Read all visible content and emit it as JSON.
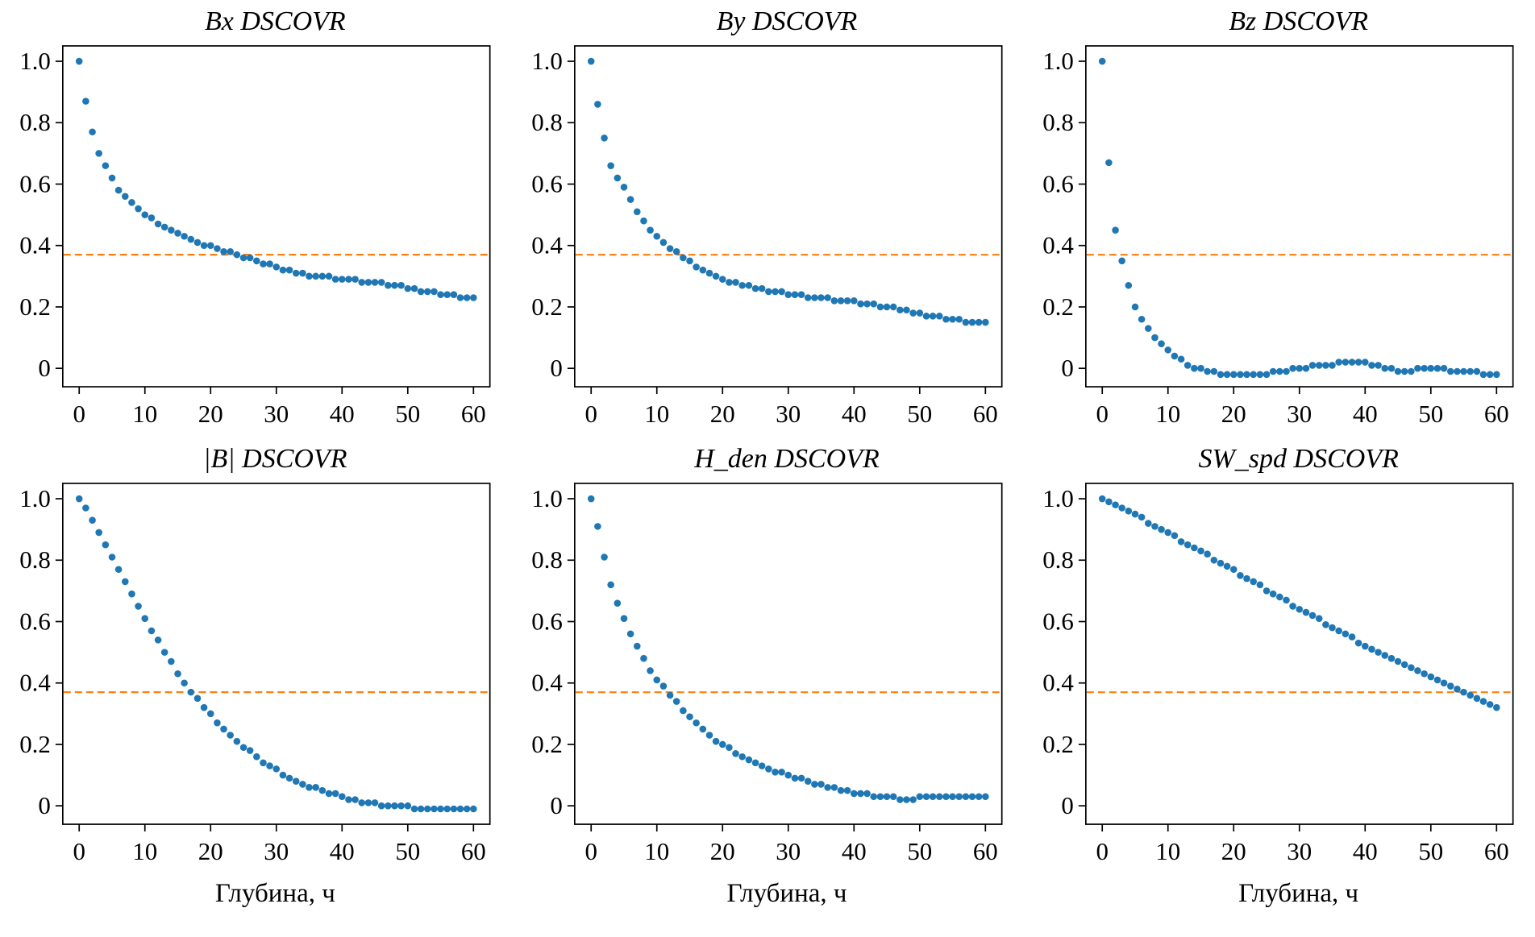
{
  "style": {
    "point_color": "#1f77b4",
    "threshold_color": "#ff7f0e",
    "axis_color": "#000000",
    "background": "#ffffff"
  },
  "axes": {
    "x": [
      0,
      1,
      2,
      3,
      4,
      5,
      6,
      7,
      8,
      9,
      10,
      11,
      12,
      13,
      14,
      15,
      16,
      17,
      18,
      19,
      20,
      21,
      22,
      23,
      24,
      25,
      26,
      27,
      28,
      29,
      30,
      31,
      32,
      33,
      34,
      35,
      36,
      37,
      38,
      39,
      40,
      41,
      42,
      43,
      44,
      45,
      46,
      47,
      48,
      49,
      50,
      51,
      52,
      53,
      54,
      55,
      56,
      57,
      58,
      59,
      60
    ],
    "xlim": [
      -2.5,
      62.5
    ],
    "ylim": [
      -0.06,
      1.05
    ],
    "xticks": [
      0,
      10,
      20,
      30,
      40,
      50,
      60
    ],
    "xtick_labels": [
      "0",
      "10",
      "20",
      "30",
      "40",
      "50",
      "60"
    ],
    "yticks": [
      0,
      0.2,
      0.4,
      0.6,
      0.8,
      1.0
    ],
    "ytick_labels": [
      "0",
      "0.2",
      "0.4",
      "0.6",
      "0.8",
      "1.0"
    ],
    "grid": false,
    "legend": "none"
  },
  "chart_data": [
    {
      "type": "scatter",
      "title": "Bx DSCOVR",
      "xlabel": "",
      "threshold": 0.37,
      "values": [
        1.0,
        0.87,
        0.77,
        0.7,
        0.66,
        0.62,
        0.58,
        0.56,
        0.54,
        0.52,
        0.5,
        0.49,
        0.47,
        0.46,
        0.45,
        0.44,
        0.43,
        0.42,
        0.41,
        0.4,
        0.4,
        0.39,
        0.38,
        0.38,
        0.37,
        0.36,
        0.36,
        0.35,
        0.34,
        0.34,
        0.33,
        0.32,
        0.32,
        0.31,
        0.31,
        0.3,
        0.3,
        0.3,
        0.3,
        0.29,
        0.29,
        0.29,
        0.29,
        0.28,
        0.28,
        0.28,
        0.28,
        0.27,
        0.27,
        0.27,
        0.26,
        0.26,
        0.25,
        0.25,
        0.25,
        0.24,
        0.24,
        0.24,
        0.23,
        0.23,
        0.23
      ]
    },
    {
      "type": "scatter",
      "title": "By DSCOVR",
      "xlabel": "",
      "threshold": 0.37,
      "values": [
        1.0,
        0.86,
        0.75,
        0.66,
        0.62,
        0.59,
        0.55,
        0.51,
        0.48,
        0.45,
        0.43,
        0.41,
        0.39,
        0.38,
        0.36,
        0.35,
        0.33,
        0.32,
        0.31,
        0.3,
        0.29,
        0.28,
        0.28,
        0.27,
        0.27,
        0.26,
        0.26,
        0.25,
        0.25,
        0.25,
        0.24,
        0.24,
        0.24,
        0.23,
        0.23,
        0.23,
        0.23,
        0.22,
        0.22,
        0.22,
        0.22,
        0.21,
        0.21,
        0.21,
        0.2,
        0.2,
        0.2,
        0.19,
        0.19,
        0.18,
        0.18,
        0.17,
        0.17,
        0.17,
        0.16,
        0.16,
        0.16,
        0.15,
        0.15,
        0.15,
        0.15
      ]
    },
    {
      "type": "scatter",
      "title": "Bz DSCOVR",
      "xlabel": "",
      "threshold": 0.37,
      "values": [
        1.0,
        0.67,
        0.45,
        0.35,
        0.27,
        0.2,
        0.16,
        0.13,
        0.1,
        0.08,
        0.06,
        0.04,
        0.03,
        0.01,
        0.0,
        0.0,
        -0.01,
        -0.01,
        -0.02,
        -0.02,
        -0.02,
        -0.02,
        -0.02,
        -0.02,
        -0.02,
        -0.02,
        -0.01,
        -0.01,
        -0.01,
        0.0,
        0.0,
        0.0,
        0.01,
        0.01,
        0.01,
        0.01,
        0.02,
        0.02,
        0.02,
        0.02,
        0.02,
        0.01,
        0.01,
        0.0,
        0.0,
        -0.01,
        -0.01,
        -0.01,
        0.0,
        0.0,
        0.0,
        0.0,
        0.0,
        -0.01,
        -0.01,
        -0.01,
        -0.01,
        -0.01,
        -0.02,
        -0.02,
        -0.02
      ]
    },
    {
      "type": "scatter",
      "title": "|B| DSCOVR",
      "xlabel": "Глубина, ч",
      "threshold": 0.37,
      "values": [
        1.0,
        0.97,
        0.93,
        0.89,
        0.85,
        0.81,
        0.77,
        0.73,
        0.69,
        0.65,
        0.61,
        0.57,
        0.54,
        0.5,
        0.47,
        0.43,
        0.4,
        0.37,
        0.35,
        0.32,
        0.3,
        0.27,
        0.25,
        0.23,
        0.21,
        0.19,
        0.18,
        0.16,
        0.14,
        0.13,
        0.12,
        0.1,
        0.09,
        0.08,
        0.07,
        0.06,
        0.06,
        0.05,
        0.04,
        0.04,
        0.03,
        0.02,
        0.02,
        0.01,
        0.01,
        0.01,
        0.0,
        0.0,
        0.0,
        0.0,
        0.0,
        -0.01,
        -0.01,
        -0.01,
        -0.01,
        -0.01,
        -0.01,
        -0.01,
        -0.01,
        -0.01,
        -0.01
      ]
    },
    {
      "type": "scatter",
      "title": "H_den DSCOVR",
      "xlabel": "Глубина, ч",
      "threshold": 0.37,
      "values": [
        1.0,
        0.91,
        0.81,
        0.72,
        0.66,
        0.61,
        0.56,
        0.52,
        0.48,
        0.44,
        0.41,
        0.39,
        0.36,
        0.34,
        0.31,
        0.29,
        0.27,
        0.25,
        0.23,
        0.21,
        0.2,
        0.19,
        0.17,
        0.16,
        0.15,
        0.14,
        0.13,
        0.12,
        0.11,
        0.11,
        0.1,
        0.09,
        0.09,
        0.08,
        0.07,
        0.07,
        0.06,
        0.06,
        0.05,
        0.05,
        0.04,
        0.04,
        0.04,
        0.03,
        0.03,
        0.03,
        0.03,
        0.02,
        0.02,
        0.02,
        0.03,
        0.03,
        0.03,
        0.03,
        0.03,
        0.03,
        0.03,
        0.03,
        0.03,
        0.03,
        0.03
      ]
    },
    {
      "type": "scatter",
      "title": "SW_spd DSCOVR",
      "xlabel": "Глубина, ч",
      "threshold": 0.37,
      "values": [
        1.0,
        0.99,
        0.98,
        0.97,
        0.96,
        0.95,
        0.94,
        0.92,
        0.91,
        0.9,
        0.89,
        0.88,
        0.86,
        0.85,
        0.84,
        0.83,
        0.82,
        0.8,
        0.79,
        0.78,
        0.77,
        0.75,
        0.74,
        0.73,
        0.72,
        0.7,
        0.69,
        0.68,
        0.67,
        0.65,
        0.64,
        0.63,
        0.62,
        0.61,
        0.59,
        0.58,
        0.57,
        0.56,
        0.55,
        0.53,
        0.52,
        0.51,
        0.5,
        0.49,
        0.48,
        0.47,
        0.46,
        0.45,
        0.44,
        0.43,
        0.42,
        0.41,
        0.4,
        0.39,
        0.38,
        0.37,
        0.36,
        0.35,
        0.34,
        0.33,
        0.32
      ]
    }
  ]
}
